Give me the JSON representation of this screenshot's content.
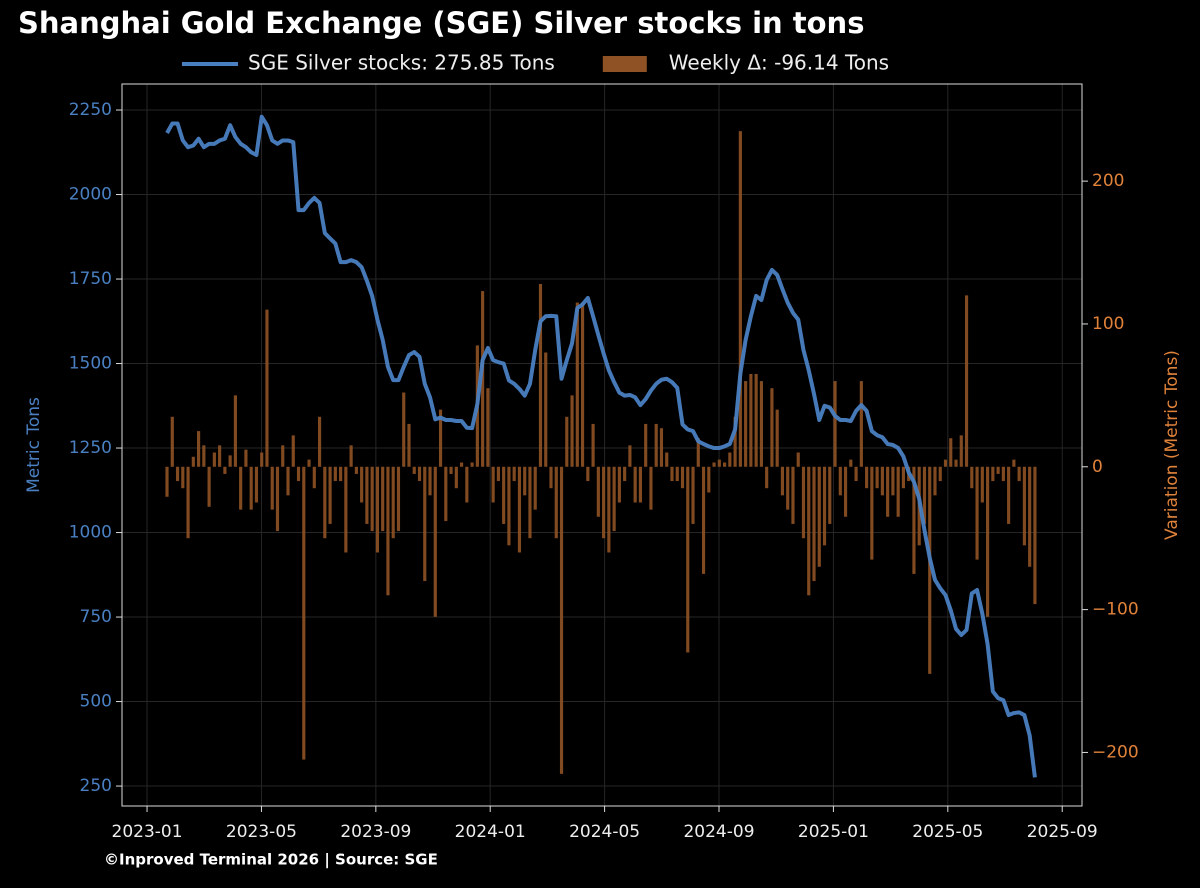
{
  "chart_data": {
    "type": "bar_line",
    "title": "Shanghai Gold Exchange (SGE) Silver stocks in tons",
    "footer": "©Inproved Terminal 2026 | Source: SGE",
    "ylabel": "Metric Tons",
    "y2label": "Variation (Metric Tons)",
    "grid": true,
    "legend": "top",
    "categories": [
      null,
      null,
      null,
      null,
      null,
      null,
      null,
      null,
      null,
      null,
      null,
      null,
      null,
      null,
      null,
      null,
      null,
      null,
      null,
      null,
      null,
      null,
      null,
      null,
      null,
      null,
      null,
      null,
      null,
      null,
      null,
      null,
      null,
      null,
      null,
      null,
      null,
      null,
      null,
      null,
      null,
      null,
      null,
      null,
      null,
      null,
      null,
      null,
      null,
      null,
      null,
      null,
      null,
      null,
      null,
      null,
      null,
      null,
      null,
      null,
      null,
      null,
      null,
      null,
      null,
      null,
      null,
      null,
      null,
      null,
      null,
      null,
      null,
      null,
      null,
      null,
      null,
      null,
      null,
      null,
      null,
      null,
      null,
      null,
      null,
      null,
      null,
      null,
      null,
      null,
      null,
      null,
      null,
      null,
      null,
      null,
      null,
      null,
      null,
      null,
      null,
      null,
      null,
      null,
      null,
      null,
      null,
      null,
      null,
      null,
      null,
      null,
      null,
      null,
      null,
      null,
      null,
      null,
      null,
      null,
      null,
      null,
      null,
      null,
      null,
      null,
      null,
      null,
      null,
      null,
      null,
      null,
      null,
      null,
      null,
      null,
      null,
      null,
      null,
      null,
      null,
      null,
      null,
      null,
      null,
      null,
      null,
      null,
      null,
      null,
      null,
      null,
      null,
      null,
      null,
      null,
      null,
      null,
      null,
      null,
      null,
      null,
      null,
      null,
      null,
      null
    ],
    "xlim": [
      -8.56,
      173.95
    ],
    "xticks": [
      {
        "value": -3.8,
        "label": "2023-01"
      },
      {
        "value": 17.95,
        "label": "2023-05"
      },
      {
        "value": 39.7,
        "label": "2023-09"
      },
      {
        "value": 61.44,
        "label": "2024-01"
      },
      {
        "value": 83.19,
        "label": "2024-05"
      },
      {
        "value": 104.94,
        "label": "2024-09"
      },
      {
        "value": 126.69,
        "label": "2025-01"
      },
      {
        "value": 148.44,
        "label": "2025-05"
      },
      {
        "value": 170.19,
        "label": "2025-09"
      }
    ],
    "ylim": [
      191,
      2327
    ],
    "yticks": [
      250,
      500,
      750,
      1000,
      1250,
      1500,
      1750,
      2000,
      2250
    ],
    "y2lim": [
      -237.5,
      268
    ],
    "y2ticks": [
      {
        "value": -200,
        "label": "−200"
      },
      {
        "value": -100,
        "label": "−100"
      },
      0,
      100,
      200
    ],
    "series": [
      {
        "name": "SGE Silver stocks: 275.85 Tons",
        "type": "line",
        "color": "#4a80c2",
        "values": [
          2182,
          2210,
          2210,
          2160,
          2140,
          2145,
          2165,
          2140,
          2150,
          2150,
          2160,
          2165,
          2205,
          2170,
          2150,
          2140,
          2125,
          2117,
          2230,
          2205,
          2160,
          2150,
          2160,
          2160,
          2155,
          1954,
          1954,
          1975,
          1990,
          1975,
          1886,
          1870,
          1855,
          1800,
          1800,
          1806,
          1800,
          1785,
          1745,
          1700,
          1630,
          1570,
          1490,
          1451,
          1451,
          1490,
          1525,
          1534,
          1520,
          1440,
          1400,
          1335,
          1340,
          1333,
          1333,
          1330,
          1330,
          1310,
          1309,
          1380,
          1510,
          1546,
          1510,
          1504,
          1500,
          1450,
          1440,
          1425,
          1405,
          1440,
          1540,
          1625,
          1640,
          1641,
          1640,
          1455,
          1510,
          1560,
          1664,
          1675,
          1694,
          1640,
          1584,
          1530,
          1480,
          1445,
          1414,
          1405,
          1407,
          1400,
          1377,
          1395,
          1420,
          1440,
          1452,
          1455,
          1445,
          1428,
          1320,
          1305,
          1300,
          1270,
          1262,
          1255,
          1250,
          1250,
          1255,
          1262,
          1305,
          1470,
          1570,
          1640,
          1700,
          1688,
          1747,
          1777,
          1762,
          1720,
          1680,
          1650,
          1630,
          1540,
          1480,
          1410,
          1333,
          1375,
          1370,
          1345,
          1333,
          1333,
          1330,
          1360,
          1377,
          1360,
          1300,
          1288,
          1282,
          1262,
          1259,
          1250,
          1225,
          1178,
          1150,
          1100,
          1007,
          925,
          860,
          835,
          815,
          770,
          715,
          697,
          712,
          820,
          830,
          760,
          670,
          530,
          510,
          504,
          460,
          466,
          468,
          460,
          400,
          275.85
        ]
      },
      {
        "name": "Weekly Δ: -96.14 Tons",
        "type": "bar",
        "axis": "y2",
        "color": "#8f5224",
        "values": [
          -21,
          35,
          -10,
          -15,
          -50,
          7,
          25,
          15,
          -28,
          10,
          15,
          -5,
          8,
          50,
          -30,
          12,
          -30,
          -25,
          10,
          110,
          -30,
          -45,
          15,
          -20,
          22,
          -10,
          -205,
          5,
          -15,
          35,
          -50,
          -40,
          -10,
          -10,
          -60,
          15,
          -5,
          -25,
          -40,
          -45,
          -60,
          -45,
          -90,
          -50,
          -45,
          52,
          30,
          -5,
          -10,
          -80,
          -20,
          -105,
          40,
          -38,
          -5,
          -15,
          3,
          -25,
          3,
          85,
          123,
          55,
          -25,
          -10,
          -40,
          -55,
          -10,
          -60,
          -20,
          -50,
          -30,
          128,
          80,
          -15,
          -50,
          -215,
          35,
          50,
          115,
          115,
          -10,
          30,
          -35,
          -50,
          -60,
          -45,
          -25,
          -10,
          15,
          -25,
          -25,
          30,
          -30,
          30,
          27,
          10,
          -10,
          -10,
          -15,
          -130,
          -40,
          20,
          -75,
          -18,
          3,
          5,
          3,
          10,
          35,
          235,
          60,
          65,
          65,
          60,
          -15,
          55,
          40,
          -20,
          -30,
          -40,
          10,
          -50,
          -90,
          -80,
          -70,
          -55,
          -40,
          60,
          -20,
          -35,
          5,
          -10,
          60,
          -15,
          -65,
          -15,
          -20,
          -35,
          -20,
          -35,
          -15,
          -10,
          -75,
          -55,
          -40,
          -145,
          -20,
          -10,
          5,
          20,
          5,
          22,
          120,
          -15,
          -65,
          -25,
          -105,
          -10,
          -5,
          -10,
          -40,
          5,
          -10,
          -55,
          -70,
          -96.14
        ]
      }
    ],
    "left_axis_color": "#4a80c2",
    "right_axis_color": "#e0823a"
  }
}
